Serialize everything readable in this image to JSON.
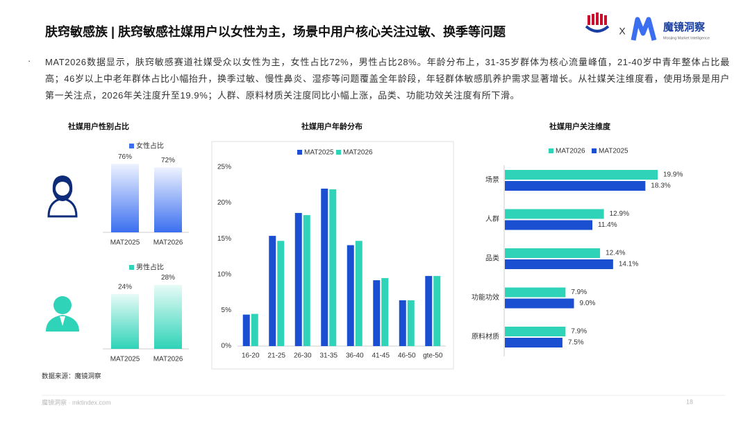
{
  "header": {
    "title": "肤窍敏感族 | 肤窍敏感社媒用户以女性为主，场景中用户核心关注过敏、换季等问题",
    "separator": "X",
    "brand": "魔镜洞察",
    "brand_sub": "Moojing Market Intelligence"
  },
  "summary": {
    "bullet": "·",
    "text": "MAT2026数据显示，肤窍敏感赛道社媒受众以女性为主，女性占比72%，男性占比28%。年龄分布上，31-35岁群体为核心流量峰值，21-40岁中青年整体占比最高；46岁以上中老年群体占比小幅抬升，换季过敏、慢性鼻炎、湿疹等问题覆盖全年龄段，年轻群体敏感肌养护需求显著增长。从社媒关注维度看，使用场景是用户第一关注点，2026年关注度升至19.9%；人群、原料材质关注度同比小幅上涨，品类、功能功效关注度有所下滑。"
  },
  "chart_data": [
    {
      "type": "bar",
      "title": "社媒用户性别占比",
      "categories": [
        "MAT2025",
        "MAT2026"
      ],
      "series": [
        {
          "name": "女性占比",
          "color": "#3b6ff0",
          "values": [
            76,
            72
          ],
          "value_labels": [
            "76%",
            "72%"
          ]
        }
      ]
    },
    {
      "type": "bar",
      "categories": [
        "MAT2025",
        "MAT2026"
      ],
      "series": [
        {
          "name": "男性占比",
          "color": "#2ed3b8",
          "values": [
            24,
            28
          ],
          "value_labels": [
            "24%",
            "28%"
          ]
        }
      ]
    },
    {
      "type": "bar",
      "title": "社媒用户年龄分布",
      "categories": [
        "16-20",
        "21-25",
        "26-30",
        "31-35",
        "36-40",
        "41-45",
        "46-50",
        "gte-50"
      ],
      "series": [
        {
          "name": "MAT2025",
          "color": "#1a4fd1",
          "values": [
            4.4,
            15.4,
            18.6,
            22.0,
            14.1,
            9.2,
            6.4,
            9.8
          ]
        },
        {
          "name": "MAT2026",
          "color": "#2ed3b8",
          "values": [
            4.5,
            14.7,
            18.3,
            21.9,
            14.7,
            9.5,
            6.4,
            9.8
          ]
        }
      ],
      "ylim": [
        0,
        25
      ],
      "yticks": [
        {
          "value": 0,
          "label": "0%"
        },
        {
          "value": 5,
          "label": "5%"
        },
        {
          "value": 10,
          "label": "10%"
        },
        {
          "value": 15,
          "label": "15%"
        },
        {
          "value": 20,
          "label": "20%"
        },
        {
          "value": 25,
          "label": "25%"
        }
      ],
      "grid": false
    },
    {
      "type": "barh",
      "title": "社媒用户关注维度",
      "categories": [
        "场景",
        "人群",
        "品类",
        "功能功效",
        "原料材质"
      ],
      "series": [
        {
          "name": "MAT2026",
          "color": "#2ed3b8",
          "values": [
            19.9,
            12.9,
            12.4,
            7.9,
            7.9
          ],
          "value_labels": [
            "19.9%",
            "12.9%",
            "12.4%",
            "7.9%",
            "7.9%"
          ]
        },
        {
          "name": "MAT2025",
          "color": "#1a4fd1",
          "values": [
            18.3,
            11.4,
            14.1,
            9.0,
            7.5
          ],
          "value_labels": [
            "18.3%",
            "11.4%",
            "14.1%",
            "9.0%",
            "7.5%"
          ]
        }
      ]
    }
  ],
  "source": "数据来源：魔镜洞察",
  "footer": {
    "site": "魔镜洞察 · mktindex.com",
    "page": "18"
  }
}
